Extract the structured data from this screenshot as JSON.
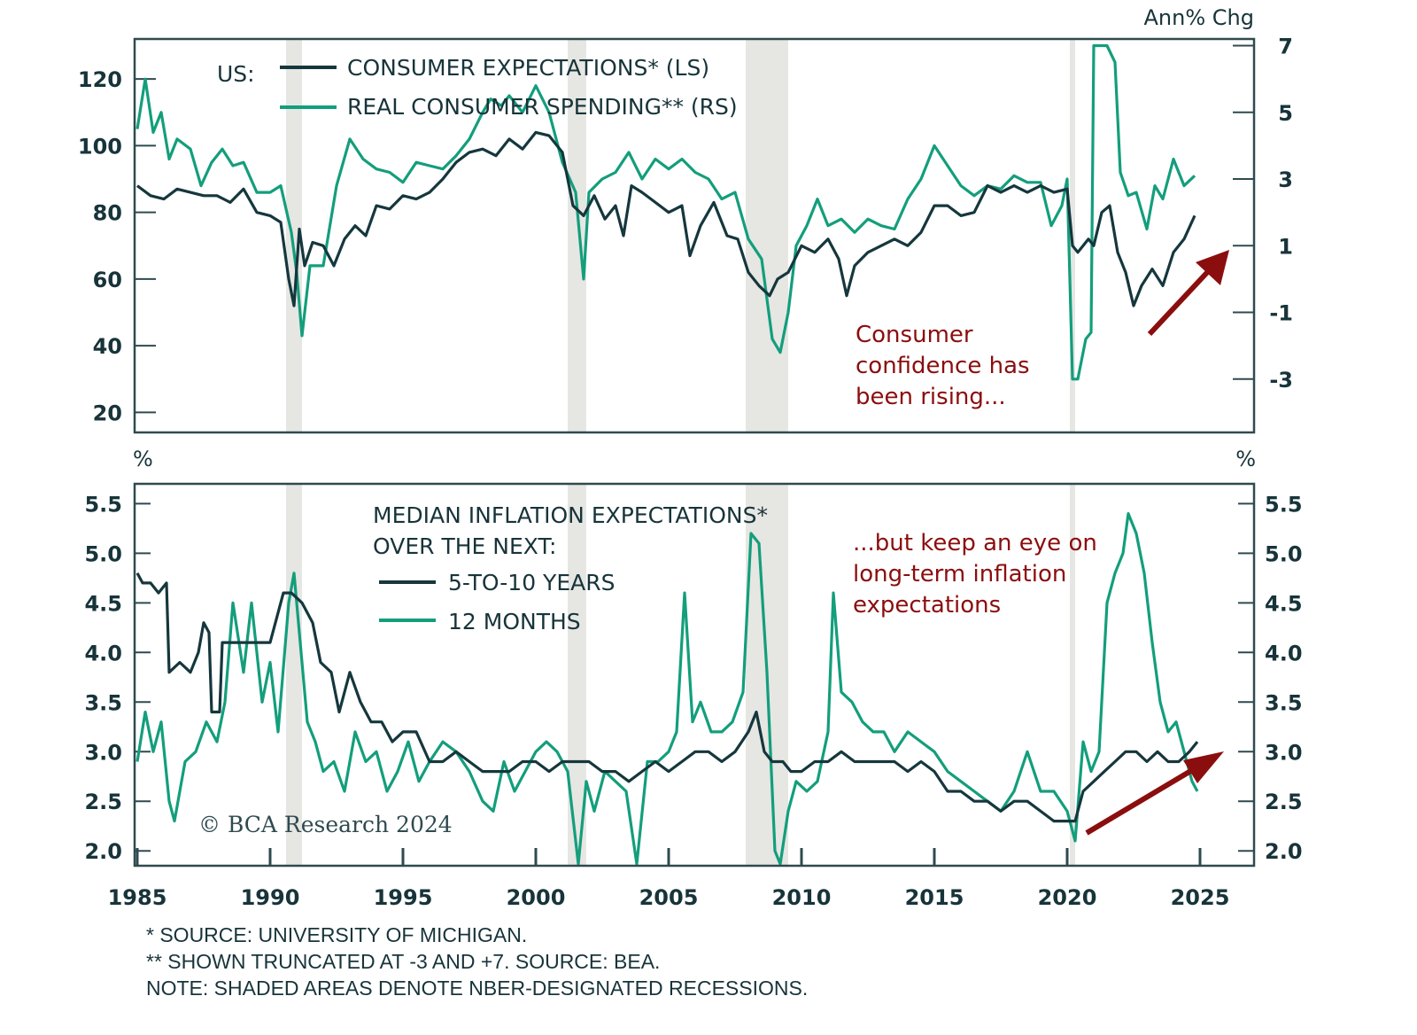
{
  "colors": {
    "dark_series": "#15373d",
    "green_series": "#139e7c",
    "recession": "#e6e6e3",
    "axis": "#2f4a4f",
    "annotation": "#8b0e0e"
  },
  "chart_data": [
    {
      "id": "top",
      "type": "line",
      "title": "US:",
      "left_unit": "",
      "right_unit": "Ann% Chg",
      "x_ticks": [
        "1985",
        "1990",
        "1995",
        "2000",
        "2005",
        "2010",
        "2015",
        "2020",
        "2025"
      ],
      "xlim": [
        1985,
        2027
      ],
      "left_axis": {
        "ylim": [
          14,
          132
        ],
        "ticks": [
          "20",
          "40",
          "60",
          "80",
          "100",
          "120"
        ]
      },
      "right_axis": {
        "ylim": [
          -4.6,
          7.2
        ],
        "ticks": [
          "-3",
          "-1",
          "1",
          "3",
          "5",
          "7"
        ]
      },
      "recessions": [
        [
          1990.6,
          1991.2
        ],
        [
          2001.2,
          2001.9
        ],
        [
          2007.9,
          2009.5
        ],
        [
          2020.1,
          2020.3
        ]
      ],
      "series": [
        {
          "name": "CONSUMER EXPECTATIONS* (LS)",
          "axis": "left",
          "color_key": "dark_series",
          "x": [
            1985.0,
            1985.5,
            1986.0,
            1986.5,
            1987.0,
            1987.5,
            1988.0,
            1988.5,
            1989.0,
            1989.5,
            1990.0,
            1990.4,
            1990.7,
            1990.9,
            1991.1,
            1991.3,
            1991.6,
            1992.0,
            1992.4,
            1992.8,
            1993.2,
            1993.6,
            1994.0,
            1994.5,
            1995.0,
            1995.5,
            1996.0,
            1996.5,
            1997.0,
            1997.5,
            1998.0,
            1998.5,
            1999.0,
            1999.5,
            2000.0,
            2000.5,
            2001.0,
            2001.4,
            2001.8,
            2002.2,
            2002.6,
            2003.0,
            2003.3,
            2003.6,
            2004.0,
            2004.5,
            2005.0,
            2005.5,
            2005.8,
            2006.2,
            2006.7,
            2007.2,
            2007.6,
            2008.0,
            2008.4,
            2008.8,
            2009.1,
            2009.5,
            2010.0,
            2010.5,
            2011.0,
            2011.4,
            2011.7,
            2012.0,
            2012.5,
            2013.0,
            2013.5,
            2014.0,
            2014.5,
            2015.0,
            2015.5,
            2016.0,
            2016.5,
            2017.0,
            2017.5,
            2018.0,
            2018.5,
            2019.0,
            2019.5,
            2020.0,
            2020.2,
            2020.4,
            2020.8,
            2021.0,
            2021.3,
            2021.6,
            2021.9,
            2022.2,
            2022.5,
            2022.8,
            2023.2,
            2023.6,
            2024.0,
            2024.4,
            2024.8
          ],
          "values": [
            88,
            85,
            84,
            87,
            86,
            85,
            85,
            83,
            87,
            80,
            79,
            77,
            60,
            52,
            75,
            64,
            71,
            70,
            64,
            72,
            76,
            73,
            82,
            81,
            85,
            84,
            86,
            90,
            95,
            98,
            99,
            97,
            102,
            99,
            104,
            103,
            98,
            82,
            79,
            85,
            78,
            82,
            73,
            88,
            86,
            83,
            80,
            82,
            67,
            76,
            83,
            73,
            72,
            62,
            58,
            55,
            60,
            62,
            70,
            68,
            72,
            66,
            55,
            64,
            68,
            70,
            72,
            70,
            74,
            82,
            82,
            79,
            80,
            88,
            86,
            88,
            86,
            88,
            86,
            87,
            70,
            68,
            72,
            70,
            80,
            82,
            68,
            62,
            52,
            58,
            63,
            58,
            68,
            72,
            79
          ]
        },
        {
          "name": "REAL CONSUMER SPENDING** (RS)",
          "axis": "right",
          "color_key": "green_series",
          "x": [
            1985.0,
            1985.3,
            1985.6,
            1985.9,
            1986.2,
            1986.5,
            1987.0,
            1987.4,
            1987.8,
            1988.2,
            1988.6,
            1989.0,
            1989.5,
            1990.0,
            1990.4,
            1990.8,
            1991.0,
            1991.2,
            1991.5,
            1992.0,
            1992.5,
            1993.0,
            1993.5,
            1994.0,
            1994.5,
            1995.0,
            1995.5,
            1996.0,
            1996.5,
            1997.0,
            1997.5,
            1998.0,
            1998.3,
            1998.7,
            1999.0,
            1999.5,
            2000.0,
            2000.5,
            2001.0,
            2001.5,
            2001.8,
            2002.0,
            2002.5,
            2003.0,
            2003.5,
            2004.0,
            2004.5,
            2005.0,
            2005.5,
            2006.0,
            2006.5,
            2007.0,
            2007.5,
            2008.0,
            2008.5,
            2008.9,
            2009.2,
            2009.5,
            2009.8,
            2010.2,
            2010.6,
            2011.0,
            2011.5,
            2012.0,
            2012.5,
            2013.0,
            2013.5,
            2014.0,
            2014.5,
            2015.0,
            2015.5,
            2016.0,
            2016.5,
            2017.0,
            2017.5,
            2018.0,
            2018.5,
            2019.0,
            2019.4,
            2019.8,
            2020.0,
            2020.2,
            2020.4,
            2020.7,
            2020.9,
            2021.0,
            2021.2,
            2021.5,
            2021.8,
            2022.0,
            2022.3,
            2022.6,
            2023.0,
            2023.3,
            2023.6,
            2024.0,
            2024.4,
            2024.8
          ],
          "values": [
            4.5,
            6.0,
            4.4,
            5.0,
            3.6,
            4.2,
            3.9,
            2.8,
            3.5,
            3.9,
            3.4,
            3.5,
            2.6,
            2.6,
            2.8,
            1.4,
            0.2,
            -1.7,
            0.4,
            0.4,
            2.8,
            4.2,
            3.6,
            3.3,
            3.2,
            2.9,
            3.5,
            3.4,
            3.3,
            3.7,
            4.2,
            5.0,
            5.4,
            5.2,
            5.5,
            5.0,
            5.8,
            5.0,
            3.5,
            2.6,
            0.0,
            2.6,
            3.0,
            3.2,
            3.8,
            3.0,
            3.6,
            3.3,
            3.6,
            3.2,
            3.0,
            2.4,
            2.6,
            1.2,
            0.6,
            -1.8,
            -2.2,
            -1.0,
            1.0,
            1.6,
            2.4,
            1.6,
            1.8,
            1.4,
            1.8,
            1.6,
            1.5,
            2.4,
            3.0,
            4.0,
            3.4,
            2.8,
            2.5,
            2.8,
            2.7,
            3.1,
            2.9,
            2.9,
            1.6,
            2.2,
            3.0,
            -3.0,
            -3.0,
            -1.8,
            -1.6,
            7.0,
            7.0,
            7.0,
            6.5,
            3.2,
            2.5,
            2.6,
            1.5,
            2.8,
            2.4,
            3.6,
            2.8,
            3.1
          ]
        }
      ],
      "annotation": {
        "lines": [
          "Consumer",
          "confidence has",
          "been rising..."
        ]
      }
    },
    {
      "id": "bottom",
      "type": "line",
      "title": "MEDIAN INFLATION EXPECTATIONS* OVER THE NEXT:",
      "left_unit": "%",
      "right_unit": "%",
      "x_ticks": [
        "1985",
        "1990",
        "1995",
        "2000",
        "2005",
        "2010",
        "2015",
        "2020",
        "2025"
      ],
      "xlim": [
        1985,
        2027
      ],
      "ylim": [
        1.85,
        5.7
      ],
      "y_ticks": [
        "2.0",
        "2.5",
        "3.0",
        "3.5",
        "4.0",
        "4.5",
        "5.0",
        "5.5"
      ],
      "recessions": [
        [
          1990.6,
          1991.2
        ],
        [
          2001.2,
          2001.9
        ],
        [
          2007.9,
          2009.5
        ],
        [
          2020.1,
          2020.3
        ]
      ],
      "series": [
        {
          "name": "5-TO-10 YEARS",
          "color_key": "dark_series",
          "x": [
            1985.0,
            1985.2,
            1985.5,
            1985.8,
            1986.1,
            1986.2,
            1986.6,
            1987.0,
            1987.3,
            1987.5,
            1987.7,
            1987.8,
            1988.1,
            1988.2,
            1989.5,
            1990.0,
            1990.5,
            1990.8,
            1991.2,
            1991.6,
            1991.9,
            1992.3,
            1992.6,
            1993.0,
            1993.4,
            1993.8,
            1994.2,
            1994.6,
            1995.0,
            1995.5,
            1996.0,
            1996.5,
            1997.0,
            1997.5,
            1998.0,
            1998.5,
            1999.0,
            1999.5,
            2000.0,
            2000.5,
            2001.0,
            2001.5,
            2002.0,
            2002.5,
            2003.0,
            2003.5,
            2004.0,
            2004.5,
            2005.0,
            2005.5,
            2006.0,
            2006.5,
            2007.0,
            2007.5,
            2008.0,
            2008.3,
            2008.6,
            2008.9,
            2009.3,
            2009.6,
            2010.0,
            2010.5,
            2011.0,
            2011.5,
            2012.0,
            2012.5,
            2013.0,
            2013.5,
            2014.0,
            2014.5,
            2015.0,
            2015.5,
            2016.0,
            2016.5,
            2017.0,
            2017.5,
            2018.0,
            2018.5,
            2019.0,
            2019.5,
            2020.0,
            2020.3,
            2020.6,
            2021.0,
            2021.4,
            2021.8,
            2022.2,
            2022.6,
            2023.0,
            2023.4,
            2023.8,
            2024.2,
            2024.6,
            2024.9
          ],
          "values": [
            4.8,
            4.7,
            4.7,
            4.6,
            4.7,
            3.8,
            3.9,
            3.8,
            4.0,
            4.3,
            4.2,
            3.4,
            3.4,
            4.1,
            4.1,
            4.1,
            4.6,
            4.6,
            4.5,
            4.3,
            3.9,
            3.8,
            3.4,
            3.8,
            3.5,
            3.3,
            3.3,
            3.1,
            3.2,
            3.2,
            2.9,
            2.9,
            3.0,
            2.9,
            2.8,
            2.8,
            2.8,
            2.9,
            2.9,
            2.8,
            2.9,
            2.9,
            2.9,
            2.8,
            2.8,
            2.7,
            2.8,
            2.9,
            2.8,
            2.9,
            3.0,
            3.0,
            2.9,
            3.0,
            3.2,
            3.4,
            3.0,
            2.9,
            2.9,
            2.8,
            2.8,
            2.9,
            2.9,
            3.0,
            2.9,
            2.9,
            2.9,
            2.9,
            2.8,
            2.9,
            2.8,
            2.6,
            2.6,
            2.5,
            2.5,
            2.4,
            2.5,
            2.5,
            2.4,
            2.3,
            2.3,
            2.3,
            2.6,
            2.7,
            2.8,
            2.9,
            3.0,
            3.0,
            2.9,
            3.0,
            2.9,
            2.9,
            3.0,
            3.1
          ]
        },
        {
          "name": "12 MONTHS",
          "color_key": "green_series",
          "x": [
            1985.0,
            1985.3,
            1985.6,
            1985.9,
            1986.2,
            1986.4,
            1986.8,
            1987.2,
            1987.6,
            1988.0,
            1988.3,
            1988.6,
            1989.0,
            1989.3,
            1989.7,
            1990.0,
            1990.3,
            1990.7,
            1990.9,
            1991.1,
            1991.4,
            1991.7,
            1992.0,
            1992.4,
            1992.8,
            1993.2,
            1993.6,
            1994.0,
            1994.4,
            1994.8,
            1995.2,
            1995.6,
            1996.0,
            1996.5,
            1997.0,
            1997.5,
            1998.0,
            1998.4,
            1998.8,
            1999.2,
            1999.6,
            2000.0,
            2000.4,
            2000.8,
            2001.2,
            2001.6,
            2001.9,
            2002.2,
            2002.6,
            2003.0,
            2003.4,
            2003.8,
            2004.2,
            2004.6,
            2005.0,
            2005.3,
            2005.6,
            2005.9,
            2006.2,
            2006.6,
            2007.0,
            2007.4,
            2007.8,
            2008.1,
            2008.4,
            2008.7,
            2009.0,
            2009.2,
            2009.5,
            2009.8,
            2010.2,
            2010.6,
            2011.0,
            2011.2,
            2011.5,
            2011.9,
            2012.3,
            2012.7,
            2013.1,
            2013.5,
            2014.0,
            2014.5,
            2015.0,
            2015.5,
            2016.0,
            2016.5,
            2017.0,
            2017.5,
            2018.0,
            2018.5,
            2019.0,
            2019.5,
            2020.0,
            2020.3,
            2020.6,
            2020.9,
            2021.2,
            2021.5,
            2021.8,
            2022.1,
            2022.3,
            2022.6,
            2022.9,
            2023.2,
            2023.5,
            2023.8,
            2024.1,
            2024.4,
            2024.7,
            2024.9
          ],
          "values": [
            2.9,
            3.4,
            3.0,
            3.3,
            2.5,
            2.3,
            2.9,
            3.0,
            3.3,
            3.1,
            3.5,
            4.5,
            3.8,
            4.5,
            3.5,
            3.9,
            3.2,
            4.5,
            4.8,
            4.2,
            3.3,
            3.1,
            2.8,
            2.9,
            2.6,
            3.2,
            2.9,
            3.0,
            2.6,
            2.8,
            3.1,
            2.7,
            2.9,
            3.1,
            3.0,
            2.8,
            2.5,
            2.4,
            2.9,
            2.6,
            2.8,
            3.0,
            3.1,
            3.0,
            2.8,
            1.6,
            2.7,
            2.4,
            2.8,
            2.7,
            2.6,
            1.8,
            2.9,
            2.9,
            3.0,
            3.2,
            4.6,
            3.3,
            3.5,
            3.2,
            3.2,
            3.3,
            3.6,
            5.2,
            5.1,
            3.8,
            2.0,
            1.7,
            2.4,
            2.7,
            2.6,
            2.7,
            3.2,
            4.6,
            3.6,
            3.5,
            3.3,
            3.2,
            3.2,
            3.0,
            3.2,
            3.1,
            3.0,
            2.8,
            2.7,
            2.6,
            2.5,
            2.4,
            2.6,
            3.0,
            2.6,
            2.6,
            2.4,
            2.1,
            3.1,
            2.8,
            3.0,
            4.5,
            4.8,
            5.0,
            5.4,
            5.2,
            4.8,
            4.1,
            3.5,
            3.2,
            3.3,
            3.0,
            2.7,
            2.6
          ]
        }
      ],
      "annotation": {
        "lines": [
          "...but keep an eye on",
          "long-term inflation",
          "expectations"
        ]
      }
    }
  ],
  "labels": {
    "top_us": "US:",
    "top_legend_1": "CONSUMER EXPECTATIONS* (LS)",
    "top_legend_2": "REAL CONSUMER SPENDING** (RS)",
    "top_right_unit": "Ann% Chg",
    "bottom_left_unit": "%",
    "bottom_right_unit": "%",
    "bottom_legend_title_1": "MEDIAN INFLATION EXPECTATIONS*",
    "bottom_legend_title_2": "OVER THE NEXT:",
    "bottom_legend_1": "5-TO-10 YEARS",
    "bottom_legend_2": "12 MONTHS",
    "copyright": "© BCA Research 2024"
  },
  "footnotes": [
    "* SOURCE: UNIVERSITY OF MICHIGAN.",
    "** SHOWN TRUNCATED AT -3 AND +7. SOURCE: BEA.",
    "NOTE: SHADED AREAS DENOTE NBER-DESIGNATED RECESSIONS."
  ]
}
